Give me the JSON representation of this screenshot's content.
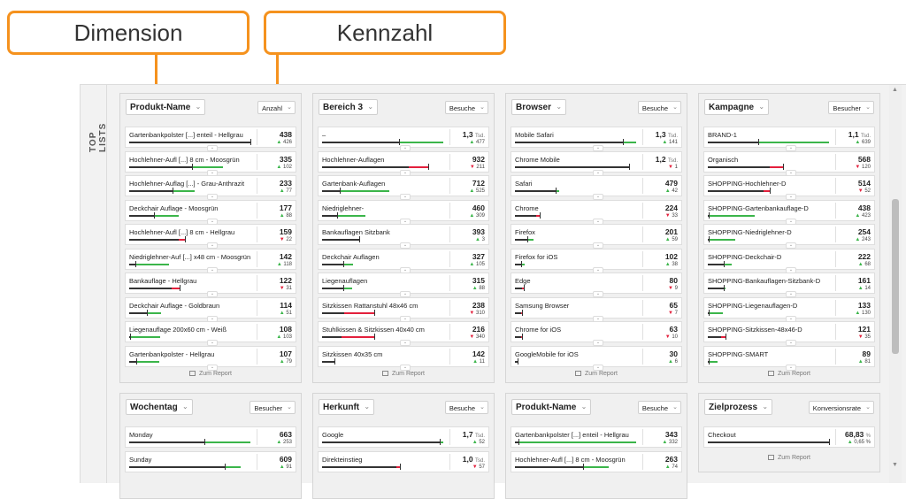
{
  "callouts": {
    "dimension": "Dimension",
    "metric": "Kennzahl"
  },
  "side_label": "TOP LISTS",
  "report_link": "Zum Report",
  "colors": {
    "accent": "#f5921e",
    "up": "#3bb54a",
    "down": "#e3203c"
  },
  "cards": [
    {
      "dimension": "Produkt-Name",
      "metric": "Anzahl",
      "rows": [
        {
          "name": "Gartenbankpolster [...] enteil - Hellgrau",
          "value": "438",
          "unit": "",
          "trend": "up",
          "change": "426",
          "black": 0.98,
          "color": 0.0
        },
        {
          "name": "Hochlehner-Aufl [...] 8 cm - Moosgrün",
          "value": "335",
          "unit": "",
          "trend": "up",
          "change": "102",
          "black": 0.76,
          "color": 0.25
        },
        {
          "name": "Hochlehner-Auflag [...] - Grau-Anthrazit",
          "value": "233",
          "unit": "",
          "trend": "up",
          "change": "77",
          "black": 0.53,
          "color": 0.18
        },
        {
          "name": "Deckchair Auflage - Moosgrün",
          "value": "177",
          "unit": "",
          "trend": "up",
          "change": "88",
          "black": 0.4,
          "color": 0.2
        },
        {
          "name": "Hochlehner-Aufl [...] 8 cm - Hellgrau",
          "value": "159",
          "unit": "",
          "trend": "down",
          "change": "22",
          "black": 0.4,
          "color": 0.05
        },
        {
          "name": "Niedriglehner-Auf [...] x48 cm - Moosgrün",
          "value": "142",
          "unit": "",
          "trend": "up",
          "change": "118",
          "black": 0.32,
          "color": 0.27
        },
        {
          "name": "Bankauflage - Hellgrau",
          "value": "122",
          "unit": "",
          "trend": "down",
          "change": "31",
          "black": 0.34,
          "color": 0.07
        },
        {
          "name": "Deckchair Auflage - Goldbraun",
          "value": "114",
          "unit": "",
          "trend": "up",
          "change": "51",
          "black": 0.26,
          "color": 0.12
        },
        {
          "name": "Liegenauflage 200x60 cm - Weiß",
          "value": "108",
          "unit": "",
          "trend": "up",
          "change": "103",
          "black": 0.25,
          "color": 0.24
        },
        {
          "name": "Gartenbankpolster - Hellgrau",
          "value": "107",
          "unit": "",
          "trend": "up",
          "change": "79",
          "black": 0.24,
          "color": 0.18
        }
      ]
    },
    {
      "dimension": "Bereich 3",
      "metric": "Besuche",
      "rows": [
        {
          "name": "–",
          "value": "1,3",
          "unit": "Tsd.",
          "trend": "up",
          "change": "477",
          "black": 0.98,
          "color": 0.36
        },
        {
          "name": "Hochlehner-Auflagen",
          "value": "932",
          "unit": "",
          "trend": "down",
          "change": "211",
          "black": 0.7,
          "color": 0.16
        },
        {
          "name": "Gartenbank-Auflagen",
          "value": "712",
          "unit": "",
          "trend": "up",
          "change": "525",
          "black": 0.54,
          "color": 0.4
        },
        {
          "name": "Niedriglehner-",
          "value": "460",
          "unit": "",
          "trend": "up",
          "change": "309",
          "black": 0.35,
          "color": 0.23
        },
        {
          "name": "Bankauflagen Sitzbank",
          "value": "393",
          "unit": "",
          "trend": "up",
          "change": "3",
          "black": 0.3,
          "color": 0.0
        },
        {
          "name": "Deckchair Auflagen",
          "value": "327",
          "unit": "",
          "trend": "up",
          "change": "105",
          "black": 0.25,
          "color": 0.08
        },
        {
          "name": "Liegenauflagen",
          "value": "315",
          "unit": "",
          "trend": "up",
          "change": "88",
          "black": 0.24,
          "color": 0.07
        },
        {
          "name": "Sitzkissen Rattanstuhl 48x46 cm",
          "value": "238",
          "unit": "",
          "trend": "down",
          "change": "310",
          "black": 0.18,
          "color": 0.24
        },
        {
          "name": "Stuhlkissen & Sitzkissen 40x40 cm",
          "value": "216",
          "unit": "",
          "trend": "down",
          "change": "340",
          "black": 0.16,
          "color": 0.26
        },
        {
          "name": "Sitzkissen 40x35 cm",
          "value": "142",
          "unit": "",
          "trend": "up",
          "change": "11",
          "black": 0.11,
          "color": 0.01
        }
      ]
    },
    {
      "dimension": "Browser",
      "metric": "Besuche",
      "rows": [
        {
          "name": "Mobile Safari",
          "value": "1,3",
          "unit": "Tsd.",
          "trend": "up",
          "change": "141",
          "black": 0.98,
          "color": 0.11
        },
        {
          "name": "Chrome Mobile",
          "value": "1,2",
          "unit": "Tsd.",
          "trend": "down",
          "change": "1",
          "black": 0.92,
          "color": 0.0
        },
        {
          "name": "Safari",
          "value": "479",
          "unit": "",
          "trend": "up",
          "change": "42",
          "black": 0.36,
          "color": 0.03
        },
        {
          "name": "Chrome",
          "value": "224",
          "unit": "",
          "trend": "down",
          "change": "33",
          "black": 0.17,
          "color": 0.03
        },
        {
          "name": "Firefox",
          "value": "201",
          "unit": "",
          "trend": "up",
          "change": "59",
          "black": 0.15,
          "color": 0.05
        },
        {
          "name": "Firefox for iOS",
          "value": "102",
          "unit": "",
          "trend": "up",
          "change": "38",
          "black": 0.08,
          "color": 0.03
        },
        {
          "name": "Edge",
          "value": "80",
          "unit": "",
          "trend": "down",
          "change": "9",
          "black": 0.06,
          "color": 0.01
        },
        {
          "name": "Samsung Browser",
          "value": "65",
          "unit": "",
          "trend": "down",
          "change": "7",
          "black": 0.05,
          "color": 0.01
        },
        {
          "name": "Chrome for iOS",
          "value": "63",
          "unit": "",
          "trend": "down",
          "change": "10",
          "black": 0.05,
          "color": 0.01
        },
        {
          "name": "GoogleMobile for iOS",
          "value": "30",
          "unit": "",
          "trend": "up",
          "change": "6",
          "black": 0.02,
          "color": 0.0
        }
      ]
    },
    {
      "dimension": "Kampagne",
      "metric": "Besucher",
      "rows": [
        {
          "name": "BRAND-1",
          "value": "1,1",
          "unit": "Tsd.",
          "trend": "up",
          "change": "639",
          "black": 0.98,
          "color": 0.57
        },
        {
          "name": "Organisch",
          "value": "568",
          "unit": "",
          "trend": "down",
          "change": "120",
          "black": 0.5,
          "color": 0.11
        },
        {
          "name": "SHOPPING-Hochlehner-D",
          "value": "514",
          "unit": "",
          "trend": "down",
          "change": "52",
          "black": 0.45,
          "color": 0.05
        },
        {
          "name": "SHOPPING-Gartenbankauflage-D",
          "value": "438",
          "unit": "",
          "trend": "up",
          "change": "423",
          "black": 0.38,
          "color": 0.37
        },
        {
          "name": "SHOPPING-Niedriglehner-D",
          "value": "254",
          "unit": "",
          "trend": "up",
          "change": "243",
          "black": 0.22,
          "color": 0.21
        },
        {
          "name": "SHOPPING-Deckchair-D",
          "value": "222",
          "unit": "",
          "trend": "up",
          "change": "68",
          "black": 0.19,
          "color": 0.06
        },
        {
          "name": "SHOPPING-Bankauflagen-Sitzbank-D",
          "value": "161",
          "unit": "",
          "trend": "up",
          "change": "14",
          "black": 0.14,
          "color": 0.01
        },
        {
          "name": "SHOPPING-Liegenauflagen-D",
          "value": "133",
          "unit": "",
          "trend": "up",
          "change": "130",
          "black": 0.12,
          "color": 0.11
        },
        {
          "name": "SHOPPING-Sitzkissen-48x46-D",
          "value": "121",
          "unit": "",
          "trend": "down",
          "change": "35",
          "black": 0.11,
          "color": 0.03
        },
        {
          "name": "SHOPPING-SMART",
          "value": "89",
          "unit": "",
          "trend": "up",
          "change": "81",
          "black": 0.08,
          "color": 0.07
        }
      ]
    },
    {
      "dimension": "Wochentag",
      "metric": "Besucher",
      "rows": [
        {
          "name": "Monday",
          "value": "663",
          "unit": "",
          "trend": "up",
          "change": "253",
          "black": 0.98,
          "color": 0.37
        },
        {
          "name": "Sunday",
          "value": "609",
          "unit": "",
          "trend": "up",
          "change": "91",
          "black": 0.9,
          "color": 0.13
        }
      ]
    },
    {
      "dimension": "Herkunft",
      "metric": "Besuche",
      "rows": [
        {
          "name": "Google",
          "value": "1,7",
          "unit": "Tsd.",
          "trend": "up",
          "change": "52",
          "black": 0.98,
          "color": 0.03
        },
        {
          "name": "Direkteinstieg",
          "value": "1,0",
          "unit": "Tsd.",
          "trend": "down",
          "change": "57",
          "black": 0.6,
          "color": 0.03
        }
      ]
    },
    {
      "dimension": "Produkt-Name",
      "metric": "Besuche",
      "rows": [
        {
          "name": "Gartenbankpolster [...] enteil - Hellgrau",
          "value": "343",
          "unit": "",
          "trend": "up",
          "change": "332",
          "black": 0.98,
          "color": 0.95
        },
        {
          "name": "Hochlehner-Aufl [...] 8 cm - Moosgrün",
          "value": "263",
          "unit": "",
          "trend": "up",
          "change": "74",
          "black": 0.76,
          "color": 0.21
        }
      ]
    },
    {
      "dimension": "Zielprozess",
      "metric": "Konversionsrate",
      "rows": [
        {
          "name": "Checkout",
          "value": "68,83",
          "unit": "%",
          "trend": "up",
          "change": "0,65 %",
          "black": 0.98,
          "color": 0.0
        }
      ]
    }
  ]
}
